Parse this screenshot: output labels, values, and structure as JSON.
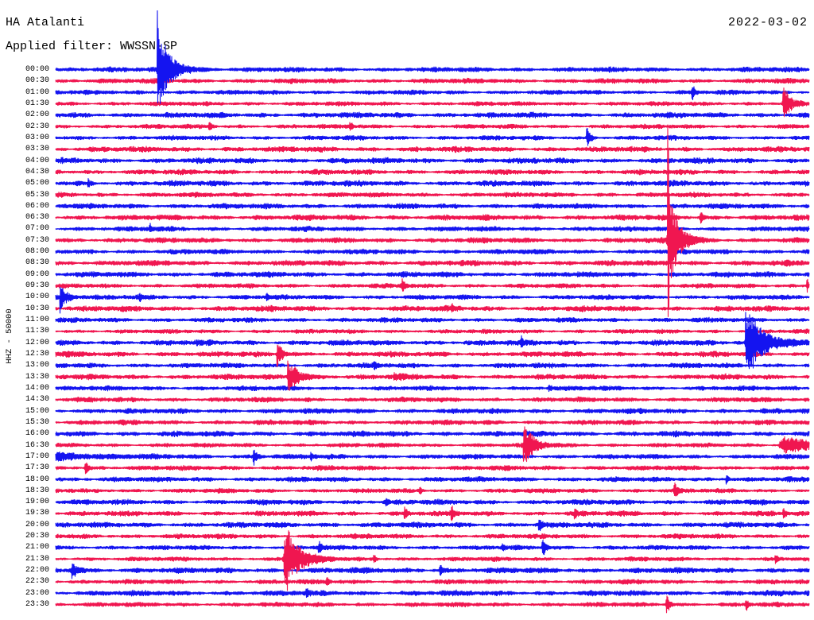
{
  "station": "HA Atalanti",
  "filter_label": "Applied filter: WWSSN-SP",
  "date": "2022-03-02",
  "channel_label": "HHZ - 50000",
  "colors": {
    "background": "#ffffff",
    "text": "#000000",
    "trace_even": "#1414f0",
    "trace_odd": "#f01650"
  },
  "chart_data": {
    "type": "line",
    "row_minutes": 30,
    "row_labels": [
      "00:00",
      "00:30",
      "01:00",
      "01:30",
      "02:00",
      "02:30",
      "03:00",
      "03:30",
      "04:00",
      "04:30",
      "05:00",
      "05:30",
      "06:00",
      "06:30",
      "07:00",
      "07:30",
      "08:00",
      "08:30",
      "09:00",
      "09:30",
      "10:00",
      "10:30",
      "11:00",
      "11:30",
      "12:00",
      "12:30",
      "13:00",
      "13:30",
      "14:00",
      "14:30",
      "15:00",
      "15:30",
      "16:00",
      "16:30",
      "17:00",
      "17:30",
      "18:00",
      "18:30",
      "19:00",
      "19:30",
      "20:00",
      "20:30",
      "21:00",
      "21:30",
      "22:00",
      "22:30",
      "23:00",
      "23:30"
    ],
    "events": [
      {
        "t": "00:04:03",
        "amp": 3.3,
        "peak": 6.8,
        "dur": 70
      },
      {
        "t": "01:25:19",
        "amp": 0.8,
        "peak": 0.9,
        "dur": 15
      },
      {
        "t": "01:58:57",
        "amp": 1.6,
        "peak": 1.8,
        "dur": 35
      },
      {
        "t": "02:36:05",
        "amp": 0.45,
        "dur": 12
      },
      {
        "t": "02:41:42",
        "amp": 0.45,
        "dur": 12
      },
      {
        "t": "03:21:08",
        "amp": 0.85,
        "peak": 0.95,
        "dur": 20
      },
      {
        "t": "05:01:16",
        "amp": 0.35,
        "dur": 10
      },
      {
        "t": "06:55:38",
        "amp": 0.55,
        "dur": 14
      },
      {
        "t": "07:03:44",
        "amp": 0.4,
        "dur": 10
      },
      {
        "t": "07:54:22",
        "amp": 4.3,
        "peak": 18,
        "dur": 55
      },
      {
        "t": "09:43:46",
        "amp": 0.6,
        "dur": 15
      },
      {
        "t": "09:59:54",
        "amp": 0.7,
        "dur": 6
      },
      {
        "t": "10:00:10",
        "amp": 1.0,
        "peak": 2.3,
        "dur": 40
      },
      {
        "t": "10:03:19",
        "amp": 0.3,
        "dur": 10
      },
      {
        "t": "10:08:23",
        "amp": 0.35,
        "dur": 10
      },
      {
        "t": "10:45:45",
        "amp": 0.3,
        "dur": 12
      },
      {
        "t": "12:18:31",
        "amp": 0.4,
        "dur": 8
      },
      {
        "t": "12:27:28",
        "amp": 3.1,
        "peak": 3.9,
        "dur": 95
      },
      {
        "t": "12:38:48",
        "amp": 1.25,
        "peak": 1.45,
        "dur": 25
      },
      {
        "t": "13:12:39",
        "amp": 0.3,
        "dur": 10
      },
      {
        "t": "13:39:14",
        "amp": 1.5,
        "peak": 2.6,
        "dur": 55
      },
      {
        "t": "13:43:27",
        "amp": 0.3,
        "dur": 30
      },
      {
        "t": "14:19:37",
        "amp": 0.3,
        "dur": 10
      },
      {
        "t": "16:48:37",
        "amp": 1.7,
        "peak": 2.8,
        "dur": 55
      },
      {
        "t": "16:58:48",
        "amp": 0.7,
        "dur": 220
      },
      {
        "t": "17:07:51",
        "amp": 0.85,
        "dur": 18
      },
      {
        "t": "17:10:08",
        "amp": 0.35,
        "dur": 10
      },
      {
        "t": "17:31:10",
        "amp": 0.6,
        "dur": 12
      },
      {
        "t": "18:26:41",
        "amp": 0.5,
        "dur": 12
      },
      {
        "t": "18:44:28",
        "amp": 0.4,
        "dur": 10
      },
      {
        "t": "18:54:37",
        "amp": 0.65,
        "dur": 15
      },
      {
        "t": "19:13:08",
        "amp": 0.35,
        "dur": 10
      },
      {
        "t": "19:43:52",
        "amp": 0.5,
        "dur": 12
      },
      {
        "t": "19:45:44",
        "amp": 0.65,
        "dur": 14
      },
      {
        "t": "19:50:38",
        "amp": 0.55,
        "dur": 12
      },
      {
        "t": "19:58:57",
        "amp": 0.45,
        "dur": 10
      },
      {
        "t": "20:19:13",
        "amp": 0.65,
        "dur": 15
      },
      {
        "t": "21:10:27",
        "amp": 0.65,
        "dur": 15
      },
      {
        "t": "21:17:47",
        "amp": 0.3,
        "dur": 8
      },
      {
        "t": "21:19:22",
        "amp": 0.85,
        "peak": 1.0,
        "dur": 18
      },
      {
        "t": "21:39:05",
        "amp": 3.1,
        "peak": 5.6,
        "dur": 75
      },
      {
        "t": "21:42:39",
        "amp": 0.35,
        "dur": 10
      },
      {
        "t": "21:58:38",
        "amp": 0.35,
        "dur": 10
      },
      {
        "t": "22:00:38",
        "amp": 0.9,
        "peak": 1.1,
        "dur": 22
      },
      {
        "t": "22:15:17",
        "amp": 0.6,
        "dur": 14
      },
      {
        "t": "22:40:46",
        "amp": 0.4,
        "dur": 10
      },
      {
        "t": "23:09:58",
        "amp": 0.35,
        "dur": 10
      },
      {
        "t": "23:54:18",
        "amp": 0.85,
        "peak": 1.0,
        "dur": 18
      },
      {
        "t": "23:57:28",
        "amp": 0.5,
        "dur": 12
      }
    ]
  }
}
